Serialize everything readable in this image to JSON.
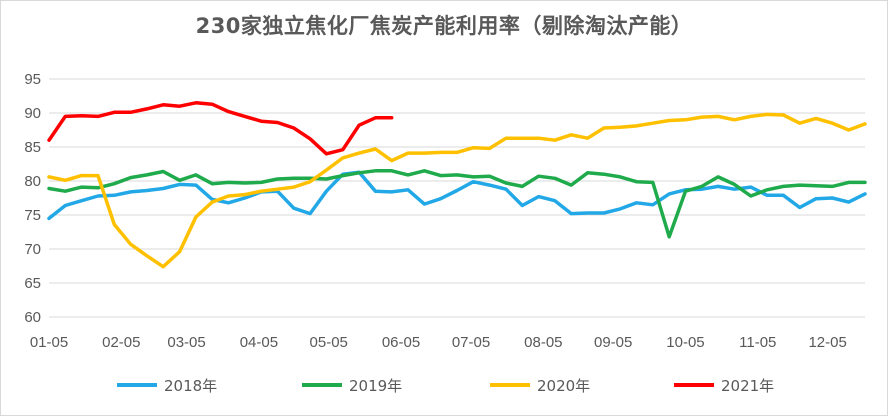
{
  "chart_data": {
    "type": "line",
    "title": "230家独立焦化厂焦炭产能利用率（剔除淘汰产能）",
    "xlabel": "",
    "ylabel": "",
    "ylim": [
      60,
      95
    ],
    "yticks": [
      60,
      65,
      70,
      75,
      80,
      85,
      90,
      95
    ],
    "xlim": [
      0,
      50
    ],
    "xtick_labels": [
      "01-05",
      "02-05",
      "03-05",
      "04-05",
      "05-05",
      "06-05",
      "07-05",
      "08-05",
      "09-05",
      "10-05",
      "11-05",
      "12-05"
    ],
    "xtick_positions": [
      0,
      4.43,
      8.43,
      12.86,
      17.14,
      21.57,
      25.86,
      30.29,
      34.57,
      39,
      43.43,
      47.71
    ],
    "grid": "horizontal",
    "legend_position": "bottom",
    "series": [
      {
        "name": "2018年",
        "color": "#22a8e6",
        "x": [
          0,
          1,
          2,
          3,
          4,
          5,
          6,
          7,
          8,
          9,
          10,
          11,
          12,
          13,
          14,
          15,
          16,
          17,
          18,
          19,
          20,
          21,
          22,
          23,
          24,
          25,
          26,
          27,
          28,
          29,
          30,
          31,
          32,
          33,
          34,
          35,
          36,
          37,
          38,
          39,
          40,
          41,
          42,
          43,
          44,
          45,
          46,
          47,
          48,
          49,
          50
        ],
        "values": [
          74.5,
          76.4,
          77.1,
          77.8,
          77.9,
          78.4,
          78.6,
          78.9,
          79.5,
          79.4,
          77.3,
          76.8,
          77.5,
          78.4,
          78.5,
          76.0,
          75.2,
          78.5,
          81.0,
          81.3,
          78.5,
          78.4,
          78.7,
          76.6,
          77.4,
          78.6,
          79.9,
          79.4,
          78.8,
          76.4,
          77.7,
          77.1,
          75.2,
          75.3,
          75.3,
          75.9,
          76.8,
          76.5,
          78.1,
          78.7,
          78.8,
          79.2,
          78.8,
          79.1,
          77.9,
          77.9,
          76.1,
          77.4,
          77.5,
          76.9,
          78.1
        ]
      },
      {
        "name": "2019年",
        "color": "#1faa4b",
        "x": [
          0,
          1,
          2,
          3,
          4,
          5,
          6,
          7,
          8,
          9,
          10,
          11,
          12,
          13,
          14,
          15,
          16,
          17,
          18,
          19,
          20,
          21,
          22,
          23,
          24,
          25,
          26,
          27,
          28,
          29,
          30,
          31,
          32,
          33,
          34,
          35,
          36,
          37,
          38,
          39,
          40,
          41,
          42,
          43,
          44,
          45,
          46,
          47,
          48,
          49,
          50
        ],
        "values": [
          78.9,
          78.5,
          79.1,
          79.0,
          79.6,
          80.5,
          80.9,
          81.4,
          80.1,
          80.9,
          79.6,
          79.8,
          79.7,
          79.8,
          80.3,
          80.4,
          80.4,
          80.3,
          80.8,
          81.2,
          81.5,
          81.5,
          80.9,
          81.5,
          80.8,
          80.9,
          80.6,
          80.7,
          79.7,
          79.2,
          80.7,
          80.4,
          79.4,
          81.2,
          81.0,
          80.6,
          79.9,
          79.8,
          71.8,
          78.5,
          79.2,
          80.6,
          79.5,
          77.8,
          78.7,
          79.2,
          79.4,
          79.3,
          79.2,
          79.8,
          79.8
        ]
      },
      {
        "name": "2020年",
        "color": "#ffc000",
        "x": [
          0,
          1,
          2,
          3,
          4,
          5,
          6,
          7,
          8,
          9,
          10,
          11,
          12,
          13,
          14,
          15,
          16,
          17,
          18,
          19,
          20,
          21,
          22,
          23,
          24,
          25,
          26,
          27,
          28,
          29,
          30,
          31,
          32,
          33,
          34,
          35,
          36,
          37,
          38,
          39,
          40,
          41,
          42,
          43,
          44,
          45,
          46,
          47,
          48,
          49,
          50
        ],
        "values": [
          80.6,
          80.1,
          80.8,
          80.8,
          73.6,
          70.7,
          69.0,
          67.4,
          69.6,
          74.7,
          76.9,
          77.8,
          78.0,
          78.5,
          78.8,
          79.1,
          79.9,
          81.6,
          83.4,
          84.1,
          84.7,
          83.0,
          84.1,
          84.1,
          84.2,
          84.2,
          84.9,
          84.8,
          86.3,
          86.3,
          86.3,
          86.0,
          86.8,
          86.3,
          87.8,
          87.9,
          88.1,
          88.5,
          88.9,
          89.0,
          89.4,
          89.5,
          89.0,
          89.5,
          89.8,
          89.7,
          88.5,
          89.2,
          88.5,
          87.5,
          88.4
        ]
      },
      {
        "name": "2021年",
        "color": "#ff0000",
        "x": [
          0,
          1,
          2,
          3,
          4,
          5,
          6,
          7,
          8,
          9,
          10,
          11,
          12,
          13,
          14,
          15,
          16,
          17,
          18,
          19,
          20,
          21
        ],
        "values": [
          86.0,
          89.5,
          89.6,
          89.5,
          90.1,
          90.1,
          90.6,
          91.2,
          91.0,
          91.5,
          91.3,
          90.2,
          89.5,
          88.8,
          88.6,
          87.8,
          86.2,
          84.0,
          84.6,
          88.2,
          89.3,
          89.3
        ]
      }
    ]
  }
}
